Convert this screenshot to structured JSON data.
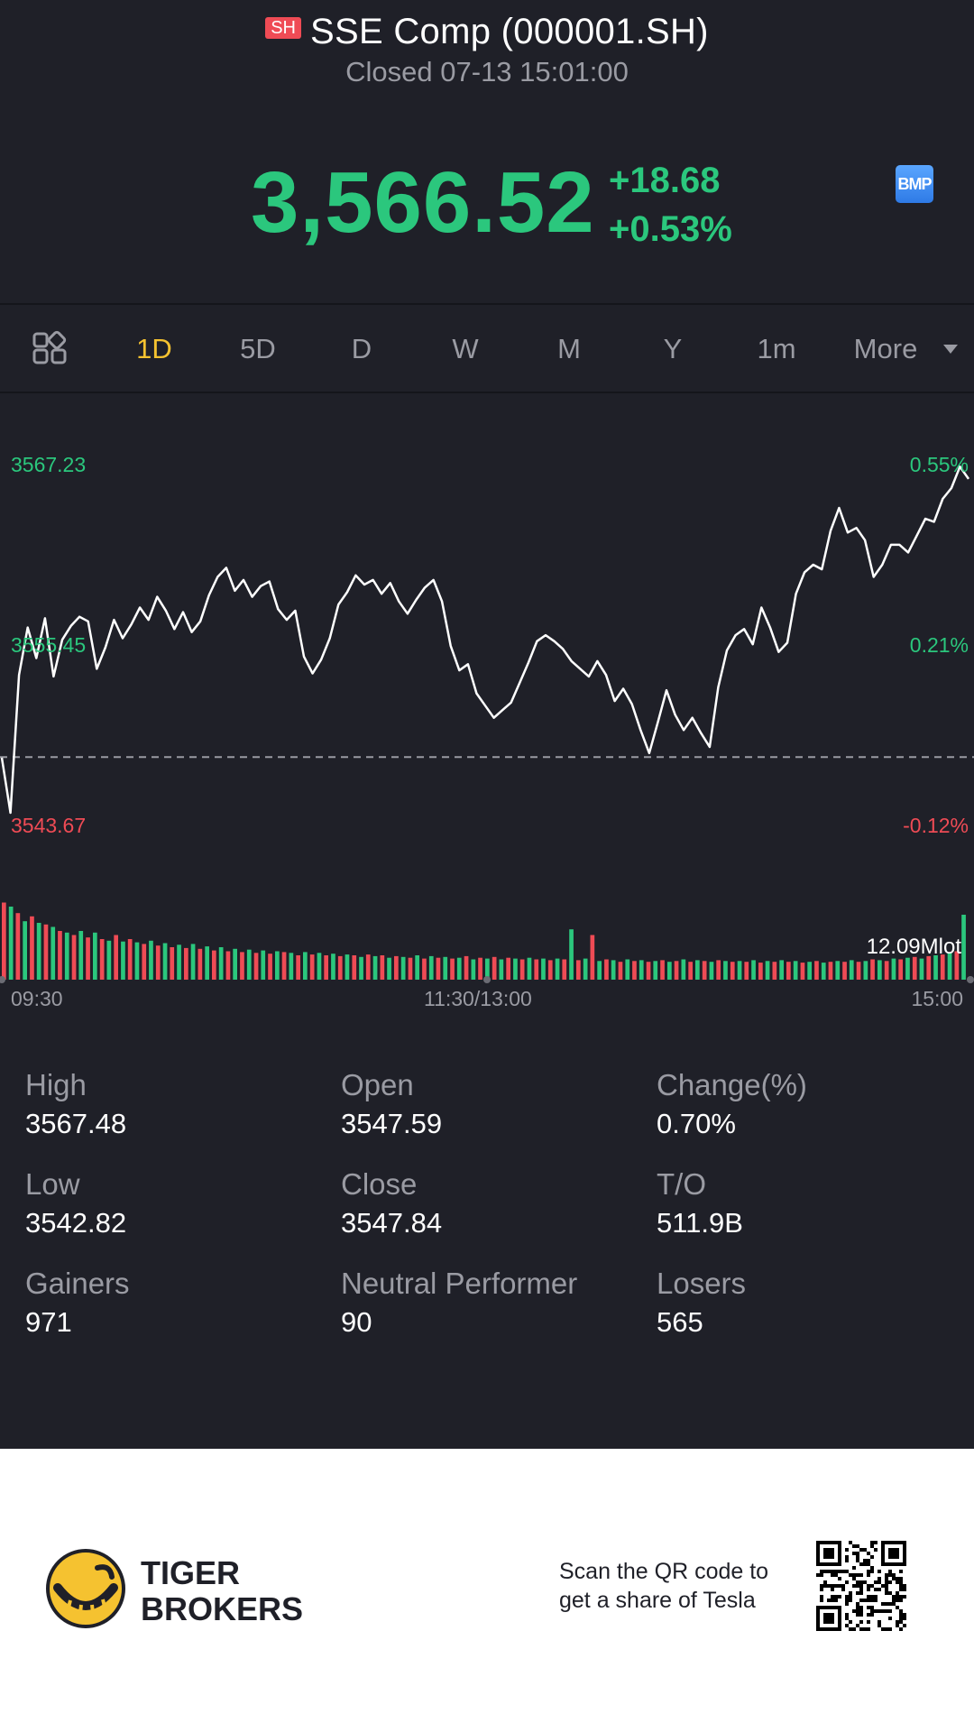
{
  "header": {
    "market_badge": "SH",
    "title": "SSE Comp (000001.SH)",
    "status": "Closed 07-13 15:01:00",
    "price": "3,566.52",
    "change_abs": "+18.68",
    "change_pct": "+0.53%",
    "badge_icon_label": "BMP"
  },
  "tabs": {
    "layout_icon": "grid-layout-icon",
    "items": [
      "1D",
      "5D",
      "D",
      "W",
      "M",
      "Y",
      "1m",
      "More"
    ],
    "active": "1D"
  },
  "chart_data": {
    "type": "line",
    "left_axis": [
      "3567.23",
      "3555.45",
      "3543.67"
    ],
    "right_axis": [
      "0.55%",
      "0.21%",
      "-0.12%"
    ],
    "x_labels": [
      "09:30",
      "11:30/13:00",
      "15:00"
    ],
    "previous_close": 3547.84,
    "ylim": [
      3543.67,
      3567.23
    ],
    "price_series": [
      3547.8,
      3544.2,
      3553.2,
      3556.3,
      3554.3,
      3556.9,
      3553.1,
      3555.5,
      3556.4,
      3557.0,
      3556.7,
      3553.6,
      3555.0,
      3556.8,
      3555.6,
      3556.5,
      3557.6,
      3556.8,
      3558.3,
      3557.4,
      3556.2,
      3557.3,
      3556.0,
      3556.7,
      3558.4,
      3559.6,
      3560.2,
      3558.7,
      3559.4,
      3558.3,
      3559.0,
      3559.3,
      3557.5,
      3556.8,
      3557.4,
      3554.4,
      3553.3,
      3554.2,
      3555.6,
      3557.8,
      3558.6,
      3559.7,
      3559.1,
      3559.4,
      3558.5,
      3559.2,
      3558.0,
      3557.2,
      3558.1,
      3558.9,
      3559.4,
      3558.0,
      3555.1,
      3553.5,
      3553.9,
      3552.0,
      3551.2,
      3550.4,
      3550.9,
      3551.4,
      3552.7,
      3554.0,
      3555.4,
      3555.8,
      3555.4,
      3554.9,
      3554.1,
      3553.6,
      3553.1,
      3554.1,
      3553.2,
      3551.5,
      3552.3,
      3551.3,
      3549.6,
      3548.1,
      3550.1,
      3552.2,
      3550.6,
      3549.6,
      3550.4,
      3549.4,
      3548.5,
      3552.4,
      3554.8,
      3555.8,
      3556.2,
      3555.2,
      3557.6,
      3556.3,
      3554.7,
      3555.3,
      3558.5,
      3559.9,
      3560.4,
      3560.1,
      3562.6,
      3564.1,
      3562.5,
      3562.8,
      3562.0,
      3559.6,
      3560.4,
      3561.7,
      3561.7,
      3561.2,
      3562.3,
      3563.4,
      3563.2,
      3564.7,
      3565.4,
      3566.8,
      3566.0
    ],
    "volume_label": "12.09Mlot",
    "volume_bars": [
      0.95,
      0.9,
      0.82,
      0.72,
      0.78,
      0.7,
      0.68,
      0.65,
      0.6,
      0.58,
      0.55,
      0.6,
      0.52,
      0.58,
      0.5,
      0.48,
      0.55,
      0.47,
      0.5,
      0.46,
      0.44,
      0.48,
      0.42,
      0.45,
      0.4,
      0.43,
      0.39,
      0.44,
      0.38,
      0.41,
      0.36,
      0.4,
      0.35,
      0.38,
      0.34,
      0.37,
      0.33,
      0.36,
      0.32,
      0.35,
      0.34,
      0.33,
      0.3,
      0.34,
      0.31,
      0.33,
      0.3,
      0.32,
      0.29,
      0.31,
      0.3,
      0.28,
      0.31,
      0.29,
      0.3,
      0.27,
      0.29,
      0.28,
      0.27,
      0.3,
      0.26,
      0.29,
      0.27,
      0.28,
      0.26,
      0.27,
      0.29,
      0.25,
      0.27,
      0.26,
      0.28,
      0.25,
      0.27,
      0.26,
      0.25,
      0.27,
      0.25,
      0.26,
      0.24,
      0.26,
      0.25,
      0.62,
      0.24,
      0.26,
      0.55,
      0.23,
      0.25,
      0.24,
      0.22,
      0.25,
      0.23,
      0.24,
      0.22,
      0.23,
      0.24,
      0.22,
      0.23,
      0.25,
      0.22,
      0.24,
      0.23,
      0.22,
      0.24,
      0.23,
      0.22,
      0.23,
      0.22,
      0.24,
      0.21,
      0.23,
      0.22,
      0.24,
      0.22,
      0.23,
      0.21,
      0.22,
      0.23,
      0.21,
      0.22,
      0.23,
      0.22,
      0.24,
      0.22,
      0.23,
      0.25,
      0.24,
      0.23,
      0.26,
      0.25,
      0.27,
      0.28,
      0.26,
      0.29,
      0.3,
      0.31,
      0.33,
      0.35,
      0.8
    ],
    "colors": {
      "up": "#2bc77d",
      "down": "#ef4b55",
      "line": "#ffffff"
    }
  },
  "stats": [
    {
      "label": "High",
      "value": "3567.48"
    },
    {
      "label": "Open",
      "value": "3547.59"
    },
    {
      "label": "Change(%)",
      "value": "0.70%"
    },
    {
      "label": "Low",
      "value": "3542.82"
    },
    {
      "label": "Close",
      "value": "3547.84"
    },
    {
      "label": "T/O",
      "value": "511.9B"
    },
    {
      "label": "Gainers",
      "value": "971"
    },
    {
      "label": "Neutral Performer",
      "value": "90"
    },
    {
      "label": "Losers",
      "value": "565"
    }
  ],
  "footer": {
    "brand_line1": "TIGER",
    "brand_line2": "BROKERS",
    "scan_line1": "Scan the QR code to",
    "scan_line2": "get a share of Tesla",
    "qr_icon": "qr-code-icon"
  },
  "colors": {
    "background": "#1f2028",
    "accent_yellow": "#f5c230",
    "up_green": "#2bc77d",
    "down_red": "#ef4b55"
  }
}
